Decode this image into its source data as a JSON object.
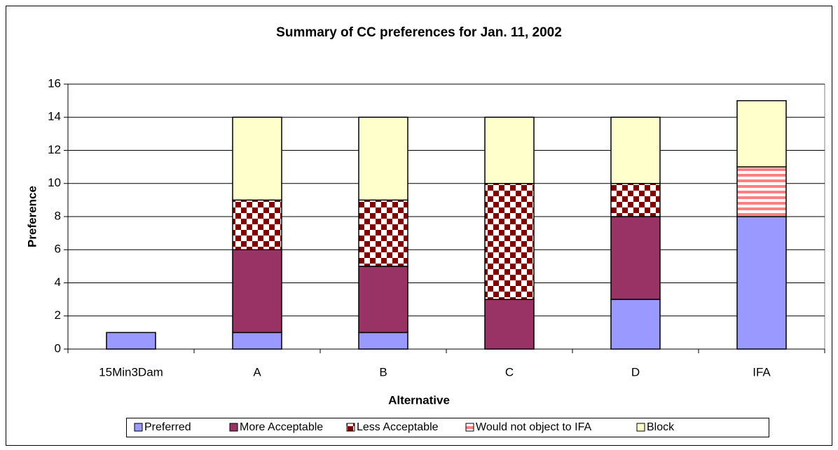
{
  "chart_data": {
    "type": "stacked_bar",
    "title": "Summary of CC preferences for Jan. 11, 2002",
    "x_label": "Alternative",
    "y_label": "Preference",
    "categories": [
      "15Min3Dam",
      "A",
      "B",
      "C",
      "D",
      "IFA"
    ],
    "series": [
      {
        "name": "Preferred",
        "color": "#9999ff",
        "values": [
          1,
          1,
          1,
          0,
          3,
          8
        ]
      },
      {
        "name": "More Acceptable",
        "color": "#993366",
        "values": [
          0,
          5,
          4,
          3,
          5,
          0
        ]
      },
      {
        "name": "Less Acceptable",
        "color": "#800000",
        "pattern": "checker",
        "values": [
          0,
          3,
          4,
          7,
          2,
          0
        ]
      },
      {
        "name": "Would not object to IFA",
        "color": "#ff8080",
        "pattern": "stripes",
        "values": [
          0,
          0,
          0,
          0,
          0,
          3
        ]
      },
      {
        "name": "Block",
        "color": "#ffffcc",
        "values": [
          0,
          5,
          5,
          4,
          4,
          4
        ]
      }
    ],
    "ylim": [
      0,
      16
    ],
    "yticks": [
      0,
      2,
      4,
      6,
      8,
      10,
      12,
      14,
      16
    ],
    "grid": true,
    "legend": "bottom"
  }
}
